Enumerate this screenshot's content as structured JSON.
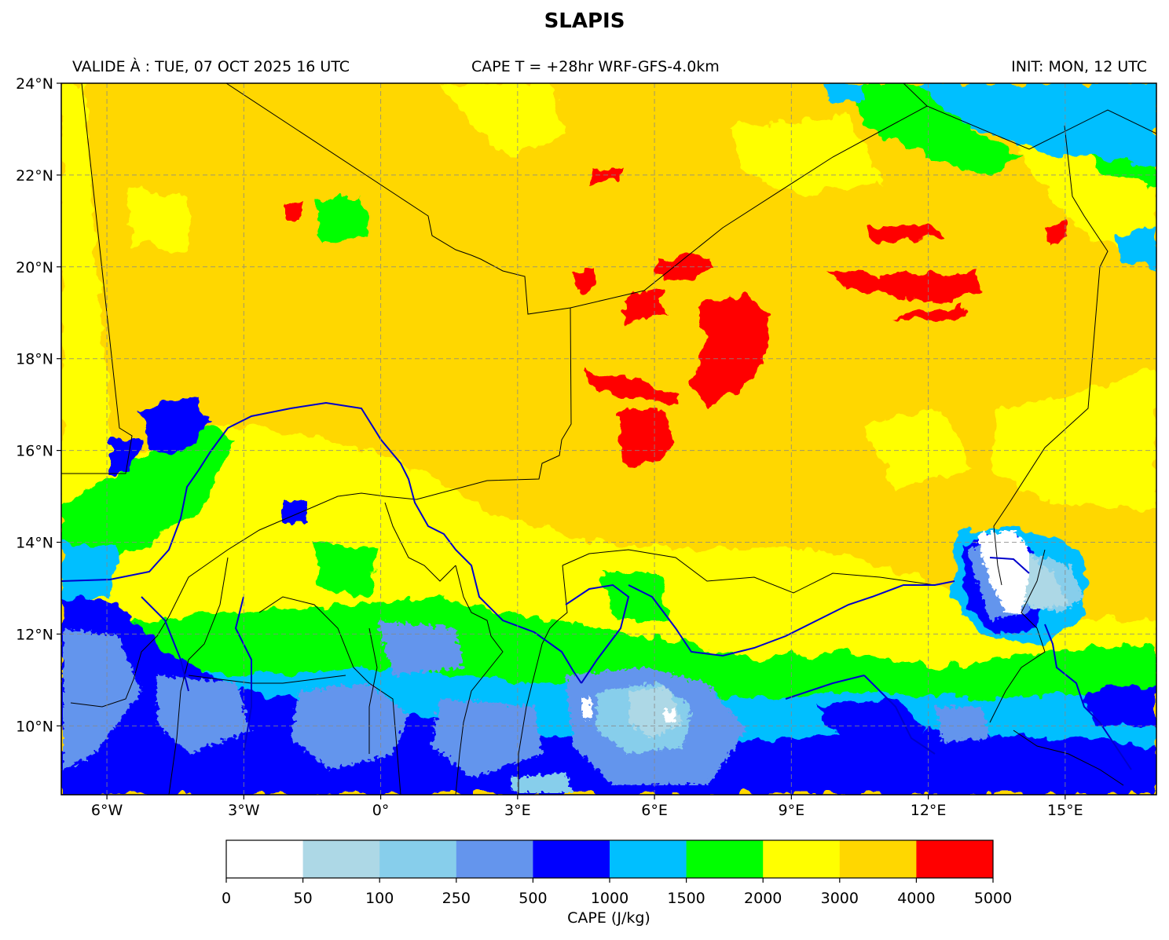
{
  "title": "SLAPIS",
  "valid_text": "VALIDE À : TUE, 07 OCT 2025 16 UTC",
  "model_text": "CAPE T = +28hr WRF-GFS-4.0km",
  "init_text": "INIT: MON, 12 UTC",
  "map": {
    "lon_range": [
      -7.0,
      17.0
    ],
    "lat_range": [
      8.5,
      24.0
    ],
    "lon_ticks": [
      {
        "value": -6,
        "label": "6°W"
      },
      {
        "value": -3,
        "label": "3°W"
      },
      {
        "value": 0,
        "label": "0°"
      },
      {
        "value": 3,
        "label": "3°E"
      },
      {
        "value": 6,
        "label": "6°E"
      },
      {
        "value": 9,
        "label": "9°E"
      },
      {
        "value": 12,
        "label": "12°E"
      },
      {
        "value": 15,
        "label": "15°E"
      }
    ],
    "lat_ticks": [
      {
        "value": 24,
        "label": "24°N"
      },
      {
        "value": 22,
        "label": "22°N"
      },
      {
        "value": 20,
        "label": "20°N"
      },
      {
        "value": 18,
        "label": "18°N"
      },
      {
        "value": 16,
        "label": "16°N"
      },
      {
        "value": 14,
        "label": "14°N"
      },
      {
        "value": 12,
        "label": "12°N"
      },
      {
        "value": 10,
        "label": "10°N"
      }
    ],
    "grid": true,
    "colorbar": {
      "label": "CAPE (J/kg)",
      "ticks": [
        "0",
        "50",
        "100",
        "250",
        "500",
        "1000",
        "1500",
        "2000",
        "3000",
        "4000",
        "5000"
      ],
      "colors": [
        "#ffffff",
        "#add8e6",
        "#87ceeb",
        "#6495ed",
        "#0000ff",
        "#00bfff",
        "#00ff00",
        "#ffff00",
        "#ffd700",
        "#ff0000"
      ]
    }
  }
}
